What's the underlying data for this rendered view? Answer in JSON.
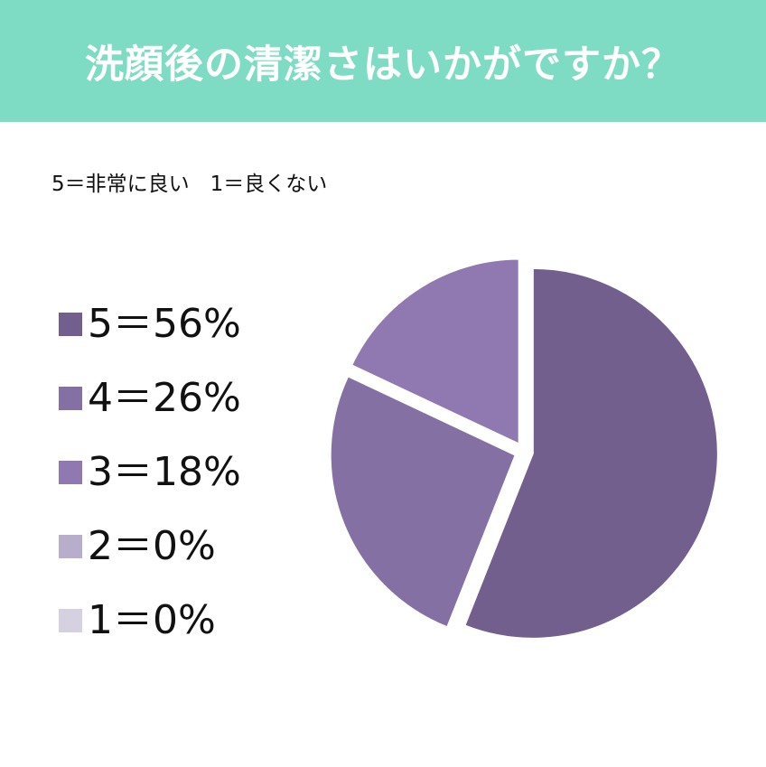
{
  "header": {
    "title": "洗顔後の清潔さはいかがですか？"
  },
  "scale_note": "5＝非常に良い　1＝良くない",
  "chart_data": {
    "type": "pie",
    "title": "洗顔後の清潔さはいかがですか？",
    "subtitle": "5＝非常に良い　1＝良くない",
    "slices": [
      {
        "label": "5＝56%",
        "category": "5",
        "value": 56,
        "color": "#725f8d"
      },
      {
        "label": "4＝26%",
        "category": "4",
        "value": 26,
        "color": "#8470a2"
      },
      {
        "label": "3＝18%",
        "category": "3",
        "value": 18,
        "color": "#9079b1"
      },
      {
        "label": "2＝0%",
        "category": "2",
        "value": 0,
        "color": "#b8aecb"
      },
      {
        "label": "1＝0%",
        "category": "1",
        "value": 0,
        "color": "#d6d1e0"
      }
    ],
    "exploded": true,
    "legend_position": "left",
    "colors": {
      "header_bg": "#7fdcc4",
      "header_text": "#ffffff"
    }
  }
}
